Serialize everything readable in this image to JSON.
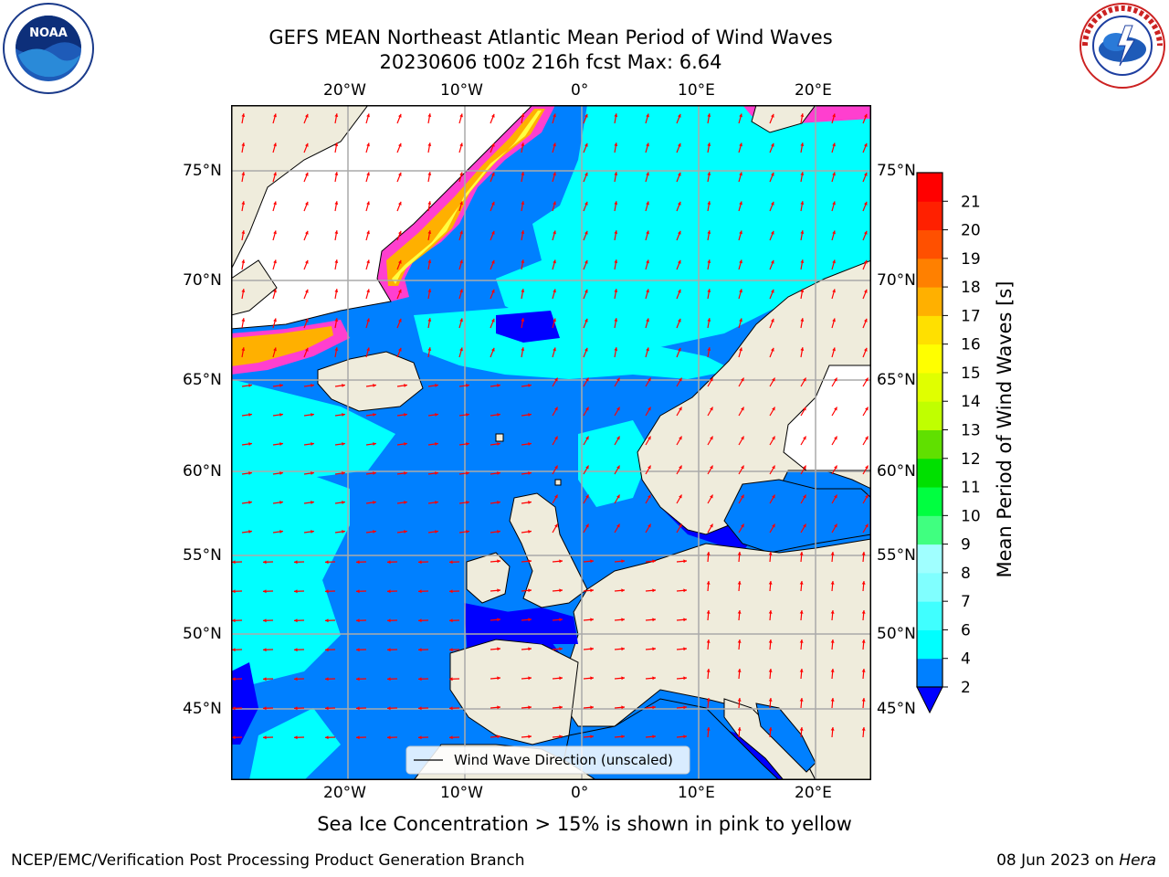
{
  "header": {
    "title_line1": "GEFS MEAN Northeast Atlantic Mean Period of Wind Waves",
    "title_line2": "20230606 t00z 216h fcst   Max: 6.64"
  },
  "map": {
    "lon_labels": [
      "20°W",
      "10°W",
      "0°",
      "10°E",
      "20°E"
    ],
    "lat_labels": [
      "75°N",
      "70°N",
      "65°N",
      "60°N",
      "55°N",
      "50°N",
      "45°N"
    ],
    "legend_label": "Wind Wave Direction (unscaled)",
    "land_color": "#efecdc",
    "colors": {
      "band_2_4": "#0080ff",
      "band_4_6": "#00ffff",
      "band_below_2": "#0000ff",
      "ice_pink": "#ff3fcf",
      "ice_orange": "#ffb000",
      "ice_yellow": "#ffff40",
      "arrow": "#ff0000"
    }
  },
  "colorbar": {
    "title": "Mean Period of Wind Waves [s]",
    "ticks": [
      "2",
      "4",
      "6",
      "7",
      "8",
      "9",
      "10",
      "11",
      "12",
      "13",
      "14",
      "15",
      "16",
      "17",
      "18",
      "19",
      "20",
      "21"
    ],
    "colors": [
      "#0080ff",
      "#00ffff",
      "#40ffff",
      "#80ffff",
      "#a0ffff",
      "#40ff80",
      "#00ff40",
      "#00e000",
      "#60e000",
      "#c0ff00",
      "#e0ff00",
      "#ffff00",
      "#ffe000",
      "#ffb000",
      "#ff8000",
      "#ff5000",
      "#ff2000",
      "#ff0000"
    ],
    "underflow_color": "#0000ff"
  },
  "footer": {
    "sea_ice_note": "Sea Ice Concentration > 15% is shown in pink to yellow",
    "left": "NCEP/EMC/Verification Post Processing Product Generation Branch",
    "right_date": "08 Jun 2023 on ",
    "right_host": "Hera"
  },
  "logos": {
    "noaa_text": "NOAA",
    "nws_text": "NATIONAL WEATHER SERVICE"
  }
}
